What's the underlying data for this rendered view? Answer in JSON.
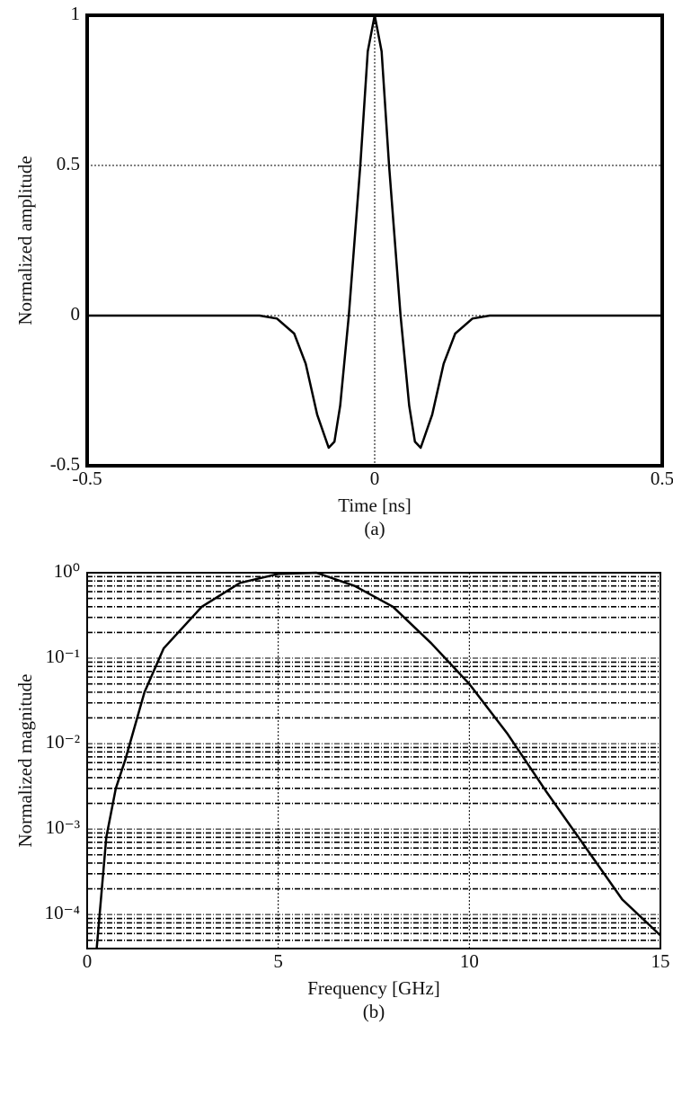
{
  "chart_data": [
    {
      "type": "line",
      "x_label": "Time [ns]",
      "y_label": "Normalized amplitude",
      "caption": "(a)",
      "x": [
        -0.5,
        -0.2,
        -0.17,
        -0.14,
        -0.12,
        -0.1,
        -0.08,
        -0.07,
        -0.06,
        -0.045,
        -0.025,
        -0.012,
        0,
        0.012,
        0.025,
        0.045,
        0.06,
        0.07,
        0.08,
        0.1,
        0.12,
        0.14,
        0.17,
        0.2,
        0.5
      ],
      "values": [
        0,
        0,
        -0.01,
        -0.06,
        -0.16,
        -0.33,
        -0.44,
        -0.42,
        -0.3,
        0,
        0.5,
        0.88,
        1,
        0.88,
        0.5,
        0,
        -0.3,
        -0.42,
        -0.44,
        -0.33,
        -0.16,
        -0.06,
        -0.01,
        0,
        0
      ],
      "color": "#000000",
      "xlim": [
        -0.5,
        0.5
      ],
      "xticks": [
        -0.5,
        0,
        0.5
      ],
      "ylim": [
        -0.5,
        1
      ],
      "yticks": [
        -0.5,
        0,
        0.5,
        1
      ],
      "grid": true
    },
    {
      "type": "line",
      "x_label": "Frequency [GHz]",
      "y_label": "Normalized magnitude",
      "caption": "(b)",
      "x": [
        0.25,
        0.5,
        0.75,
        1,
        1.5,
        2,
        3,
        4,
        5,
        6,
        7,
        8,
        9,
        10,
        11,
        12,
        13,
        14,
        15
      ],
      "values": [
        4e-05,
        0.0008,
        0.003,
        0.0065,
        0.04,
        0.13,
        0.4,
        0.76,
        0.97,
        1,
        0.7,
        0.4,
        0.15,
        0.05,
        0.013,
        0.0028,
        0.00065,
        0.00015,
        5.7e-05
      ],
      "color": "#000000",
      "xlim": [
        0,
        15
      ],
      "xticks": [
        0,
        5,
        10,
        15
      ],
      "ylim": [
        4e-05,
        1
      ],
      "log_y": true,
      "minor_grid": true,
      "yticks": [
        {
          "value": 1,
          "label": "10⁰"
        },
        {
          "value": 0.1,
          "label": "10⁻¹"
        },
        {
          "value": 0.01,
          "label": "10⁻²"
        },
        {
          "value": 0.001,
          "label": "10⁻³"
        },
        {
          "value": 0.0001,
          "label": "10⁻⁴"
        }
      ],
      "grid": true
    }
  ]
}
